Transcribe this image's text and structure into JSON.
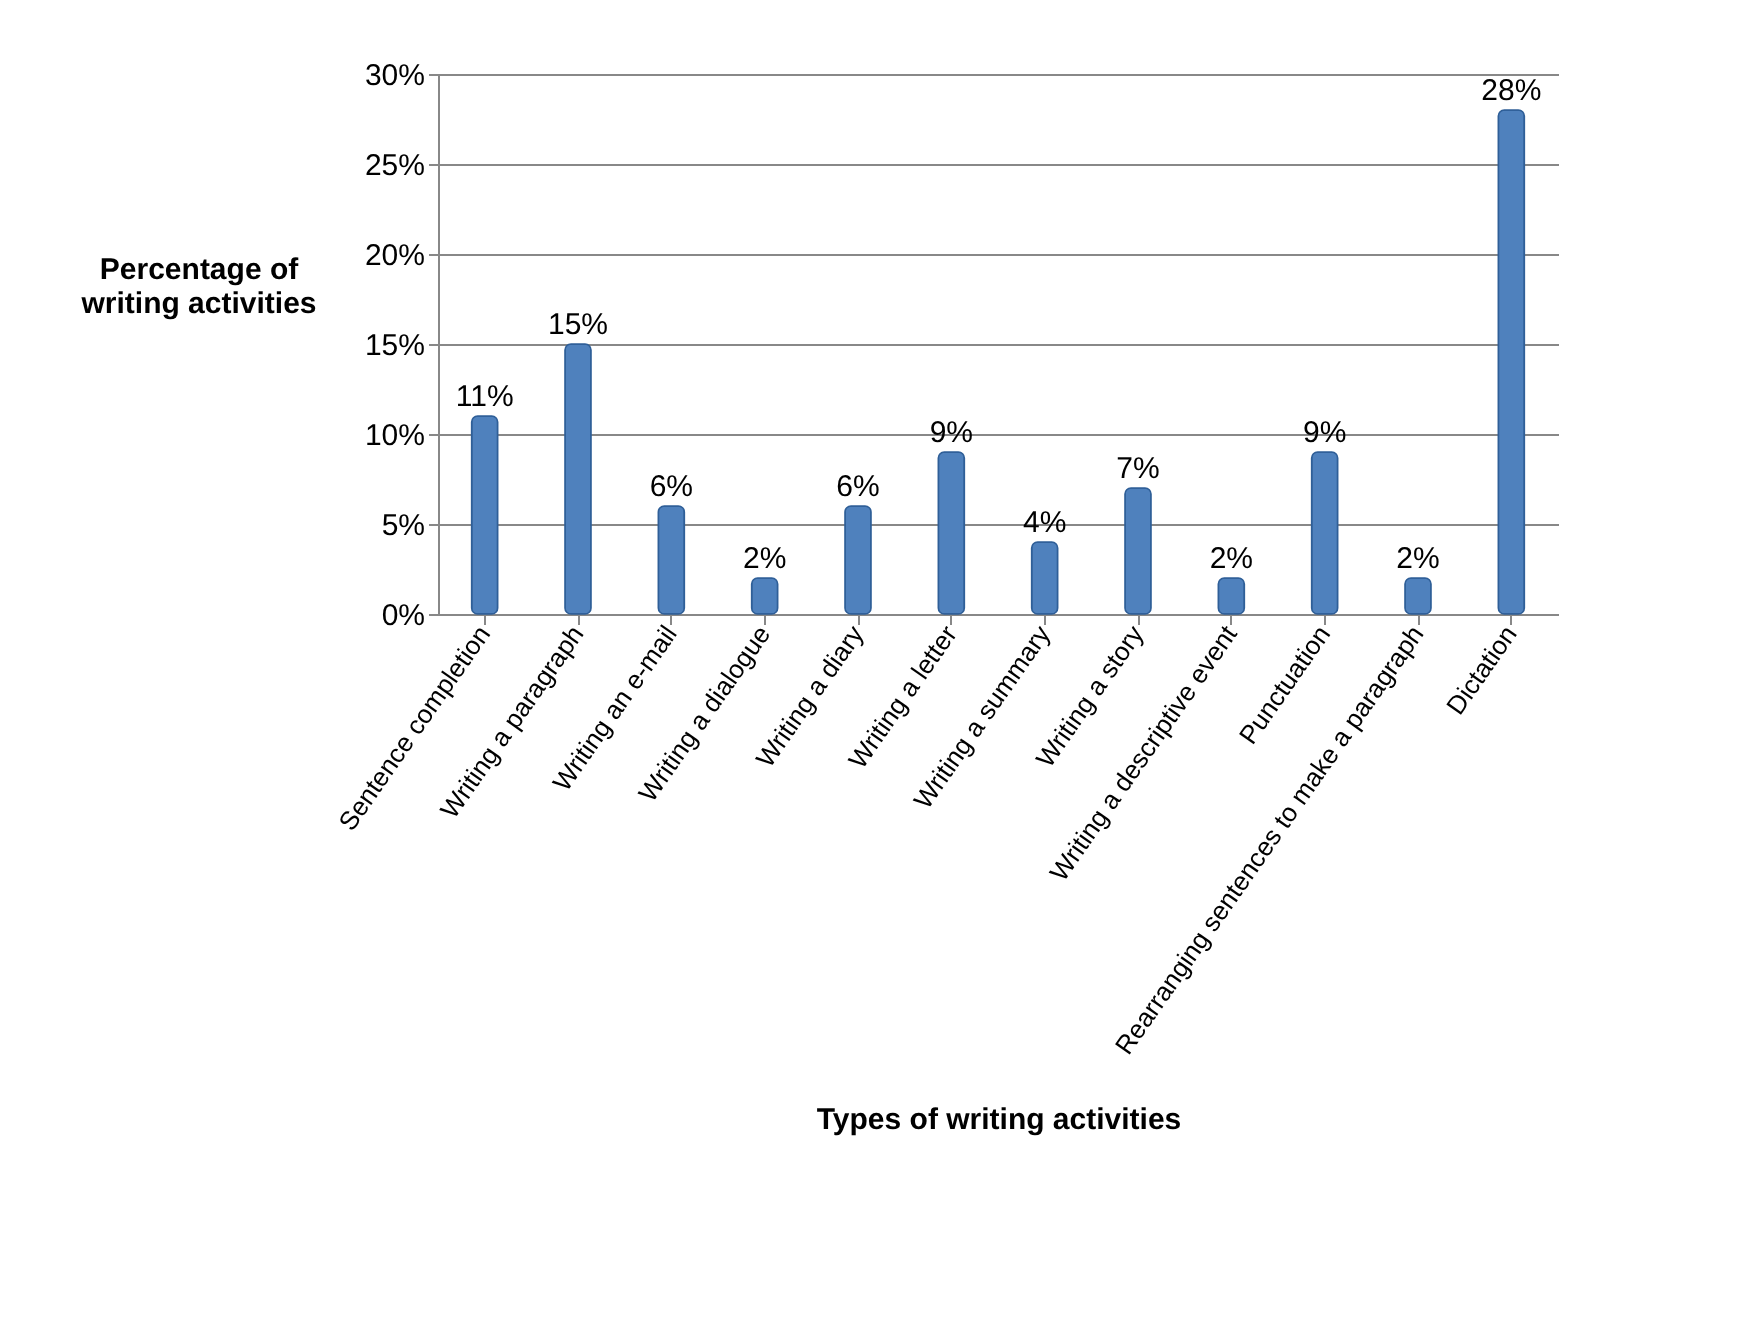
{
  "chart_data": {
    "type": "bar",
    "xlabel": "Types of writing activities",
    "ylabel": "Percentage of writing activities",
    "categories": [
      "Sentence completion",
      "Writing a paragraph",
      "Writing an e-mail",
      "Writing a dialogue",
      "Writing a diary",
      "Writing a letter",
      "Writing a summary",
      "Writing a story",
      "Writing a descriptive event",
      "Punctuation",
      "Rearranging sentences to make a paragraph",
      "Dictation"
    ],
    "values": [
      11,
      15,
      6,
      2,
      6,
      9,
      4,
      7,
      2,
      9,
      2,
      28
    ],
    "value_labels": [
      "11%",
      "15%",
      "6%",
      "2%",
      "6%",
      "9%",
      "4%",
      "7%",
      "2%",
      "9%",
      "2%",
      "28%"
    ],
    "color": "#4f81bd",
    "ylim": [
      0,
      30
    ],
    "yticks": [
      {
        "value": 0,
        "label": "0%"
      },
      {
        "value": 5,
        "label": "5%"
      },
      {
        "value": 10,
        "label": "10%"
      },
      {
        "value": 15,
        "label": "15%"
      },
      {
        "value": 20,
        "label": "20%"
      },
      {
        "value": 25,
        "label": "25%"
      },
      {
        "value": 30,
        "label": "30%"
      }
    ],
    "grid": "y"
  }
}
